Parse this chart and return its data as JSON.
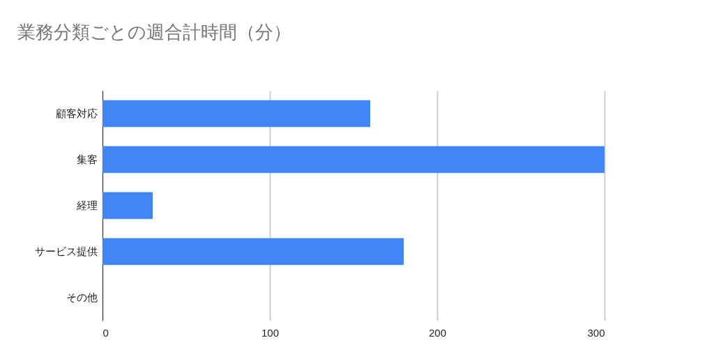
{
  "chart_data": {
    "type": "bar",
    "orientation": "horizontal",
    "title": "業務分類ごとの週合計時間（分）",
    "categories": [
      "顧客対応",
      "集客",
      "経理",
      "サービス提供",
      "その他"
    ],
    "values": [
      160,
      300,
      30,
      180,
      0
    ],
    "color": "#4285f4",
    "xlim": [
      0,
      300
    ],
    "xticks": [
      0,
      100,
      200,
      300
    ],
    "grid": "x"
  }
}
